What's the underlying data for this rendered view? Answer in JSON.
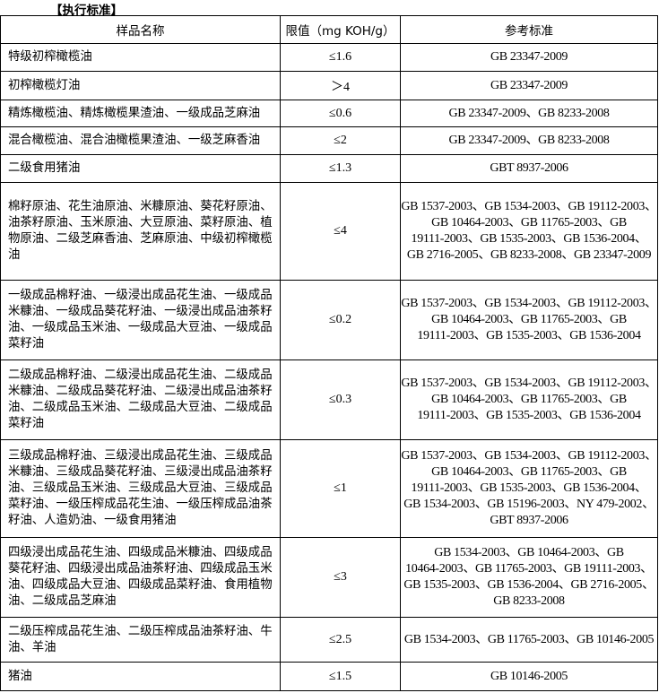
{
  "heading": "【执行标准】",
  "table": {
    "headers": [
      "样品名称",
      "限值（mg KOH/g）",
      "参考标准"
    ],
    "rows": [
      {
        "name": "特级初榨橄榄油",
        "limit": "≤1.6",
        "ref": [
          "GB 23347-2009"
        ]
      },
      {
        "name": "初榨橄榄灯油",
        "limit": "＞4",
        "ref": [
          "GB 23347-2009"
        ]
      },
      {
        "name": "精炼橄榄油、精炼橄榄果渣油、一级成品芝麻油",
        "limit": "≤0.6",
        "ref": [
          "GB 23347-2009、GB 8233-2008"
        ]
      },
      {
        "name": "混合橄榄油、混合油橄榄果渣油、一级芝麻香油",
        "limit": "≤2",
        "ref": [
          "GB 23347-2009、GB 8233-2008"
        ]
      },
      {
        "name": "二级食用猪油",
        "limit": "≤1.3",
        "ref": [
          "GBT 8937-2006"
        ]
      },
      {
        "name": "棉籽原油、花生油原油、米糠原油、葵花籽原油、油茶籽原油、玉米原油、大豆原油、菜籽原油、植物原油、二级芝麻香油、芝麻原油、中级初榨橄榄油",
        "limit": "≤4",
        "ref": [
          "GB 1537-2003、GB 1534-2003、GB 19112-2003、",
          "GB 10464-2003、GB 11765-2003、GB",
          "19111-2003、GB 1535-2003、GB 1536-2004、",
          "GB 2716-2005、GB 8233-2008、GB 23347-2009"
        ]
      },
      {
        "name": "一级成品棉籽油、一级浸出成品花生油、一级成品米糠油、一级成品葵花籽油、一级浸出成品油茶籽油、一级成品玉米油、一级成品大豆油、一级成品菜籽油",
        "limit": "≤0.2",
        "ref": [
          "GB 1537-2003、GB 1534-2003、GB 19112-2003、",
          "GB 10464-2003、GB 11765-2003、GB",
          "19111-2003、GB 1535-2003、GB 1536-2004"
        ]
      },
      {
        "name": "二级成品棉籽油、二级浸出成品花生油、二级成品米糠油、二级成品葵花籽油、二级浸出成品油茶籽油、二级成品玉米油、二级成品大豆油、二级成品菜籽油",
        "limit": "≤0.3",
        "ref": [
          "GB 1537-2003、GB 1534-2003、GB 19112-2003、",
          "GB 10464-2003、GB 11765-2003、GB",
          "19111-2003、GB 1535-2003、GB 1536-2004"
        ]
      },
      {
        "name": "三级成品棉籽油、三级浸出成品花生油、三级成品米糠油、三级成品葵花籽油、三级浸出成品油茶籽油、三级成品玉米油、三级成品大豆油、三级成品菜籽油、一级压榨成品花生油、一级压榨成品油茶籽油、人造奶油、一级食用猪油",
        "limit": "≤1",
        "ref": [
          "GB 1537-2003、GB 1534-2003、GB 19112-2003、",
          "GB 10464-2003、GB 11765-2003、GB",
          "19111-2003、GB 1535-2003、GB 1536-2004、",
          "GB 1534-2003、GB 15196-2003、NY 479-2002、",
          "GBT 8937-2006"
        ]
      },
      {
        "name": "四级浸出成品花生油、四级成品米糠油、四级成品葵花籽油、四级浸出成品油茶籽油、四级成品玉米油、四级成品大豆油、四级成品菜籽油、食用植物油、二级成品芝麻油",
        "limit": "≤3",
        "ref": [
          "GB 1534-2003、GB 10464-2003、GB",
          "10464-2003、GB 11765-2003、GB 19111-2003、",
          "GB 1535-2003、GB 1536-2004、GB 2716-2005、",
          "GB 8233-2008"
        ]
      },
      {
        "name": "二级压榨成品花生油、二级压榨成品油茶籽油、牛油、羊油",
        "limit": "≤2.5",
        "ref": [
          "GB 1534-2003、GB 11765-2003、GB 10146-2005"
        ]
      },
      {
        "name": "猪油",
        "limit": "≤1.5",
        "ref": [
          "GB 10146-2005"
        ]
      }
    ]
  }
}
